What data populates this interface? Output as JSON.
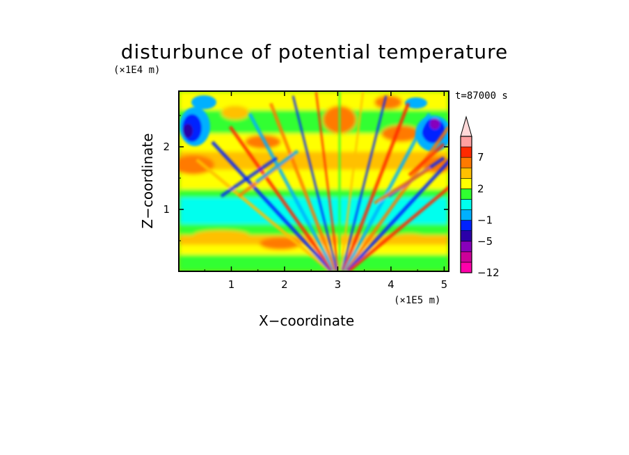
{
  "chart_data": {
    "type": "heatmap",
    "title": "disturbunce of potential temperature",
    "xlabel": "X−coordinate",
    "ylabel": "Z−coordinate",
    "x_unit": "(×1E5 m)",
    "y_unit": "(×1E4 m)",
    "time_label": "t=87000 s",
    "xlim": [
      0,
      5.1
    ],
    "ylim": [
      0,
      2.9
    ],
    "x_ticks": [
      "1",
      "2",
      "3",
      "4",
      "5"
    ],
    "x_tick_values": [
      1,
      2,
      3,
      4,
      5
    ],
    "y_ticks": [
      "1",
      "2"
    ],
    "y_tick_values": [
      1,
      2
    ],
    "colorbar": {
      "levels": [
        -12,
        -10,
        -8,
        -5,
        -3,
        -1,
        0,
        1,
        2,
        3,
        5,
        7,
        9
      ],
      "labels": [
        "7",
        "2",
        "−1",
        "−5",
        "−12"
      ],
      "label_values": [
        7,
        2,
        -1,
        -5,
        -12
      ],
      "extend": "max",
      "colors": [
        "#ff00aa",
        "#cc0099",
        "#8800bb",
        "#2b00a8",
        "#0022ff",
        "#00b0ff",
        "#00ffee",
        "#30ff30",
        "#ffff00",
        "#ffc000",
        "#ff7a00",
        "#ff2a00",
        "#ffa0a0",
        "#ffd9d9"
      ]
    },
    "grid": false
  }
}
